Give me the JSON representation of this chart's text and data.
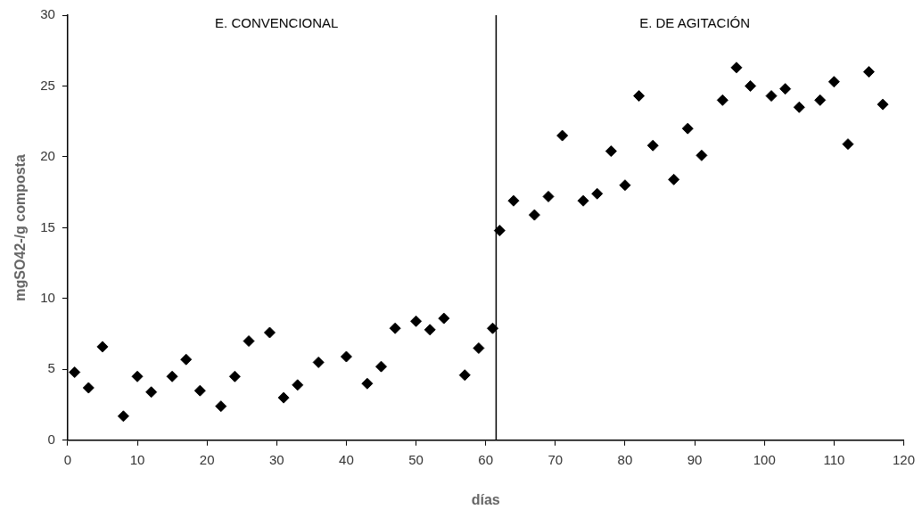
{
  "chart_data": {
    "type": "scatter",
    "xlabel": "días",
    "ylabel": "mgSO42-/g composta",
    "x": [
      1,
      3,
      5,
      8,
      10,
      12,
      15,
      17,
      19,
      22,
      24,
      26,
      29,
      31,
      33,
      36,
      40,
      43,
      45,
      47,
      50,
      52,
      54,
      57,
      59,
      61,
      62,
      64,
      67,
      69,
      71,
      74,
      76,
      78,
      80,
      82,
      84,
      87,
      89,
      91,
      94,
      96,
      98,
      101,
      103,
      105,
      108,
      110,
      112,
      115,
      117
    ],
    "series": [
      {
        "color": "#000000",
        "values": [
          4.8,
          3.7,
          6.6,
          1.7,
          4.5,
          3.4,
          4.5,
          5.7,
          3.5,
          2.4,
          4.5,
          7.0,
          7.6,
          3.0,
          3.9,
          5.5,
          5.9,
          4.0,
          5.2,
          7.9,
          8.4,
          7.8,
          8.6,
          4.6,
          6.5,
          7.9,
          14.8,
          16.9,
          15.9,
          17.2,
          21.5,
          16.9,
          17.4,
          20.4,
          18.0,
          24.3,
          20.8,
          18.4,
          22.0,
          20.1,
          24.0,
          26.3,
          25.0,
          24.3,
          24.8,
          23.5,
          24.0,
          25.3,
          20.9,
          26.0,
          23.7
        ]
      }
    ],
    "xlim": [
      0,
      120
    ],
    "xticks": [
      0,
      10,
      20,
      30,
      40,
      50,
      60,
      70,
      80,
      90,
      100,
      110,
      120
    ],
    "ylim": [
      0,
      30
    ],
    "yticks": [
      0,
      5,
      10,
      15,
      20,
      25,
      30
    ],
    "ref_lines": [
      {
        "axis": "x",
        "value": 61.5,
        "color": "#000000"
      }
    ],
    "annotations": [
      "E. CONVENCIONAL",
      "E. DE AGITACIÓN"
    ],
    "marker": "diamond",
    "grid": false,
    "legend": false
  }
}
